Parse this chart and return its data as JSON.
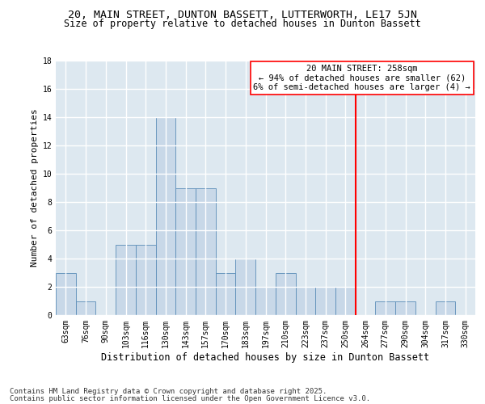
{
  "title1": "20, MAIN STREET, DUNTON BASSETT, LUTTERWORTH, LE17 5JN",
  "title2": "Size of property relative to detached houses in Dunton Bassett",
  "xlabel": "Distribution of detached houses by size in Dunton Bassett",
  "ylabel": "Number of detached properties",
  "categories": [
    "63sqm",
    "76sqm",
    "90sqm",
    "103sqm",
    "116sqm",
    "130sqm",
    "143sqm",
    "157sqm",
    "170sqm",
    "183sqm",
    "197sqm",
    "210sqm",
    "223sqm",
    "237sqm",
    "250sqm",
    "264sqm",
    "277sqm",
    "290sqm",
    "304sqm",
    "317sqm",
    "330sqm"
  ],
  "values": [
    3,
    1,
    0,
    5,
    5,
    14,
    9,
    9,
    3,
    4,
    2,
    3,
    2,
    2,
    2,
    0,
    1,
    1,
    0,
    1,
    0
  ],
  "bar_color": "#c8d8e8",
  "bar_edge_color": "#5b8db8",
  "vline_x": 14.5,
  "vline_color": "red",
  "annotation_title": "20 MAIN STREET: 258sqm",
  "annotation_line1": "← 94% of detached houses are smaller (62)",
  "annotation_line2": "6% of semi-detached houses are larger (4) →",
  "annotation_box_color": "white",
  "annotation_box_edge": "red",
  "ylim": [
    0,
    18
  ],
  "yticks": [
    0,
    2,
    4,
    6,
    8,
    10,
    12,
    14,
    16,
    18
  ],
  "footer1": "Contains HM Land Registry data © Crown copyright and database right 2025.",
  "footer2": "Contains public sector information licensed under the Open Government Licence v3.0.",
  "bg_color": "#dde8f0",
  "grid_color": "white",
  "title1_fontsize": 9.5,
  "title2_fontsize": 8.5,
  "xlabel_fontsize": 8.5,
  "ylabel_fontsize": 8.0,
  "tick_fontsize": 7.0,
  "footer_fontsize": 6.5,
  "ann_fontsize": 7.5
}
